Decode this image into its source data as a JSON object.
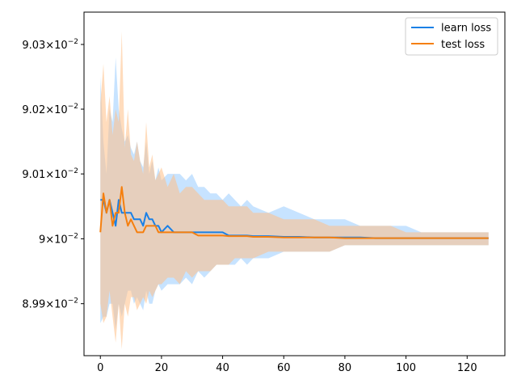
{
  "chart_data": {
    "type": "line",
    "title": "",
    "xlabel": "",
    "ylabel": "",
    "yscale": "log",
    "xlim": [
      -5.35,
      132.35
    ],
    "ylim": [
      0.08982,
      0.09035
    ],
    "grid": false,
    "legend_position": "top-right",
    "x_ticks": [
      {
        "value": 0,
        "label": "0"
      },
      {
        "value": 20,
        "label": "20"
      },
      {
        "value": 40,
        "label": "40"
      },
      {
        "value": 60,
        "label": "60"
      },
      {
        "value": 80,
        "label": "80"
      },
      {
        "value": 100,
        "label": "100"
      },
      {
        "value": 120,
        "label": "120"
      }
    ],
    "y_ticks": [
      {
        "value": 0.0899,
        "mantissa": "8.99",
        "base": "10",
        "exponent": "−2"
      },
      {
        "value": 0.09,
        "mantissa": "9",
        "base": "10",
        "exponent": "−2"
      },
      {
        "value": 0.0901,
        "mantissa": "9.01",
        "base": "10",
        "exponent": "−2"
      },
      {
        "value": 0.0902,
        "mantissa": "9.02",
        "base": "10",
        "exponent": "−2"
      },
      {
        "value": 0.0903,
        "mantissa": "9.03",
        "base": "10",
        "exponent": "−2"
      }
    ],
    "series": [
      {
        "name": "learn loss",
        "color": "#1f77b4",
        "line_color": "#1a80e6",
        "band_color": "#99ccff",
        "x": [
          0,
          1,
          2,
          3,
          4,
          5,
          6,
          7,
          8,
          9,
          10,
          11,
          12,
          13,
          14,
          15,
          16,
          17,
          18,
          19,
          20,
          22,
          24,
          26,
          28,
          30,
          32,
          34,
          36,
          38,
          40,
          42,
          44,
          46,
          48,
          50,
          55,
          60,
          65,
          70,
          75,
          80,
          85,
          90,
          95,
          100,
          105,
          110,
          115,
          120,
          127
        ],
        "mean": [
          0.09006,
          0.09006,
          0.09004,
          0.09006,
          0.09004,
          0.09002,
          0.09006,
          0.09004,
          0.09004,
          0.09004,
          0.09004,
          0.09003,
          0.09003,
          0.09003,
          0.09002,
          0.09004,
          0.09003,
          0.09003,
          0.09002,
          0.09002,
          0.09001,
          0.09002,
          0.09001,
          0.09001,
          0.09001,
          0.09001,
          0.09001,
          0.09001,
          0.09001,
          0.09001,
          0.09001,
          0.090005,
          0.090005,
          0.090005,
          0.090005,
          0.090004,
          0.090004,
          0.090003,
          0.090003,
          0.090002,
          0.090002,
          0.090002,
          0.090002,
          0.090001,
          0.090001,
          0.090001,
          0.090001,
          0.090001,
          0.090001,
          0.090001,
          0.090001
        ],
        "upper": [
          0.09025,
          0.09015,
          0.0901,
          0.0902,
          0.09018,
          0.09028,
          0.0902,
          0.09017,
          0.09015,
          0.09016,
          0.09014,
          0.09013,
          0.09015,
          0.09012,
          0.09011,
          0.09015,
          0.0901,
          0.09012,
          0.09009,
          0.09011,
          0.09009,
          0.0901,
          0.0901,
          0.0901,
          0.09009,
          0.0901,
          0.09008,
          0.09008,
          0.09007,
          0.09007,
          0.09006,
          0.09007,
          0.09006,
          0.09005,
          0.09006,
          0.09005,
          0.09004,
          0.09005,
          0.09004,
          0.09003,
          0.09003,
          0.09003,
          0.09002,
          0.09002,
          0.09002,
          0.09002,
          0.09001,
          0.09001,
          0.09001,
          0.09001,
          0.09001
        ],
        "lower": [
          0.08987,
          0.08988,
          0.08988,
          0.0899,
          0.0899,
          0.08986,
          0.0899,
          0.08988,
          0.0899,
          0.08992,
          0.08992,
          0.0899,
          0.08991,
          0.0899,
          0.08989,
          0.08992,
          0.0899,
          0.0899,
          0.08992,
          0.08993,
          0.08992,
          0.08993,
          0.08993,
          0.08993,
          0.08994,
          0.08993,
          0.08995,
          0.08994,
          0.08995,
          0.08996,
          0.08996,
          0.08996,
          0.08996,
          0.08997,
          0.08996,
          0.08997,
          0.08997,
          0.08998,
          0.08998,
          0.08998,
          0.08998,
          0.08999,
          0.08999,
          0.08999,
          0.08999,
          0.08999,
          0.08999,
          0.08999,
          0.08999,
          0.08999,
          0.08999
        ]
      },
      {
        "name": "test loss",
        "color": "#ff7f0e",
        "line_color": "#f57f0e",
        "band_color": "#ffbf87",
        "x": [
          0,
          1,
          2,
          3,
          4,
          5,
          6,
          7,
          8,
          9,
          10,
          11,
          12,
          13,
          14,
          15,
          16,
          17,
          18,
          19,
          20,
          22,
          24,
          26,
          28,
          30,
          32,
          34,
          36,
          38,
          40,
          42,
          44,
          46,
          48,
          50,
          55,
          60,
          65,
          70,
          75,
          80,
          85,
          90,
          95,
          100,
          105,
          110,
          115,
          120,
          127
        ],
        "mean": [
          0.09001,
          0.09007,
          0.09004,
          0.09006,
          0.09002,
          0.09004,
          0.09004,
          0.09008,
          0.09004,
          0.09002,
          0.09003,
          0.09002,
          0.09001,
          0.09001,
          0.09001,
          0.09002,
          0.09002,
          0.09002,
          0.09002,
          0.09001,
          0.09001,
          0.09001,
          0.09001,
          0.09001,
          0.09001,
          0.09001,
          0.090005,
          0.090005,
          0.090005,
          0.090005,
          0.090005,
          0.090004,
          0.090004,
          0.090004,
          0.090004,
          0.090003,
          0.090003,
          0.090002,
          0.090002,
          0.090002,
          0.090002,
          0.090001,
          0.090001,
          0.090001,
          0.090001,
          0.090001,
          0.090001,
          0.090001,
          0.090001,
          0.090001,
          0.090001
        ],
        "upper": [
          0.09021,
          0.09027,
          0.09018,
          0.09022,
          0.09016,
          0.0902,
          0.09018,
          0.09032,
          0.09014,
          0.0902,
          0.09013,
          0.09012,
          0.09015,
          0.09012,
          0.0901,
          0.09018,
          0.09011,
          0.09013,
          0.09009,
          0.0901,
          0.09011,
          0.09008,
          0.0901,
          0.09007,
          0.09008,
          0.09008,
          0.09007,
          0.09006,
          0.09006,
          0.09006,
          0.09006,
          0.09005,
          0.09005,
          0.09005,
          0.09005,
          0.09004,
          0.09004,
          0.09003,
          0.09003,
          0.09003,
          0.09002,
          0.09002,
          0.09002,
          0.09002,
          0.09002,
          0.09001,
          0.09001,
          0.09001,
          0.09001,
          0.09001,
          0.09001
        ],
        "lower": [
          0.0899,
          0.08987,
          0.08988,
          0.08992,
          0.08988,
          0.08984,
          0.0899,
          0.08983,
          0.0899,
          0.08988,
          0.08991,
          0.08991,
          0.08989,
          0.0899,
          0.08991,
          0.0899,
          0.08992,
          0.08991,
          0.08992,
          0.08993,
          0.08993,
          0.08994,
          0.08994,
          0.08993,
          0.08995,
          0.08994,
          0.08995,
          0.08995,
          0.08995,
          0.08996,
          0.08996,
          0.08996,
          0.08997,
          0.08997,
          0.08997,
          0.08997,
          0.08998,
          0.08998,
          0.08998,
          0.08998,
          0.08998,
          0.08999,
          0.08999,
          0.08999,
          0.08999,
          0.08999,
          0.08999,
          0.08999,
          0.08999,
          0.08999,
          0.08999
        ]
      }
    ]
  }
}
